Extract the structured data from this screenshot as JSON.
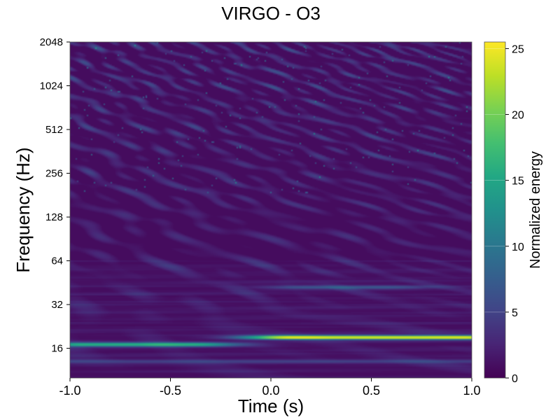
{
  "chart_data": {
    "type": "heatmap",
    "title": "VIRGO - O3",
    "xlabel": "Time (s)",
    "ylabel": "Frequency (Hz)",
    "xlim": [
      -1.0,
      1.0
    ],
    "ylim": [
      10,
      2048
    ],
    "yscale": "log2",
    "x_ticks": [
      -1.0,
      -0.5,
      0.0,
      0.5,
      1.0
    ],
    "x_tick_labels": [
      "-1.0",
      "-0.5",
      "0.0",
      "0.5",
      "1.0"
    ],
    "y_ticks": [
      16,
      32,
      64,
      128,
      256,
      512,
      1024,
      2048
    ],
    "y_tick_labels": [
      "16",
      "32",
      "64",
      "128",
      "256",
      "512",
      "1024",
      "2048"
    ],
    "colorbar": {
      "label": "Normalized energy",
      "range": [
        0,
        25.5
      ],
      "ticks": [
        0,
        5,
        10,
        15,
        20,
        25
      ],
      "tick_labels": [
        "0",
        "5",
        "10",
        "15",
        "20",
        "25"
      ],
      "colormap": "viridis"
    },
    "features": [
      {
        "time_range": [
          -0.9,
          -0.4
        ],
        "frequency": 17,
        "energy": 16
      },
      {
        "time_range": [
          0.1,
          0.95
        ],
        "frequency": 19,
        "energy": 25
      },
      {
        "time_range": [
          0.2,
          0.55
        ],
        "frequency": 42,
        "energy": 6
      },
      {
        "time_range": [
          -1.0,
          1.0
        ],
        "frequency": 13,
        "energy": 4
      }
    ]
  }
}
